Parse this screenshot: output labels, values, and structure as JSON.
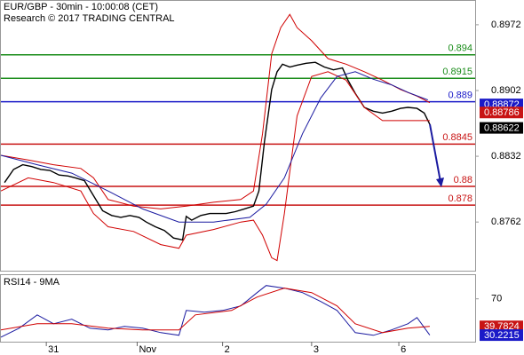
{
  "chart_data": [
    {
      "type": "line",
      "title": "EUR/GBP - 30min - 10:00:08 (CET)",
      "subtitle": "Research © 2017 TRADING CENTRAL",
      "xlim": [
        0,
        261
      ],
      "ylim": [
        0.87102,
        0.89974
      ],
      "yticks": [
        0.8972,
        0.8902,
        0.8832,
        0.8762
      ],
      "series": [
        {
          "color": "#000000",
          "x": [
            2,
            7,
            12,
            17,
            22,
            27,
            32,
            37,
            41,
            46,
            51,
            56,
            61,
            66,
            71,
            76,
            80,
            85,
            90,
            95,
            100,
            102,
            105,
            110,
            115,
            120,
            124,
            129,
            134,
            139,
            142,
            145,
            149,
            152,
            155,
            159,
            163,
            168,
            173,
            178,
            183,
            188,
            191,
            195,
            200,
            205,
            210,
            215,
            220,
            224,
            229,
            233,
            236
          ],
          "values": [
            0.8804,
            0.8818,
            0.8823,
            0.8821,
            0.8818,
            0.8817,
            0.8812,
            0.8811,
            0.8809,
            0.8806,
            0.879,
            0.8774,
            0.8769,
            0.8767,
            0.8769,
            0.8767,
            0.8762,
            0.8757,
            0.8753,
            0.8745,
            0.8743,
            0.8768,
            0.8764,
            0.8769,
            0.8771,
            0.8771,
            0.8771,
            0.8773,
            0.8776,
            0.8779,
            0.8795,
            0.8847,
            0.8903,
            0.8922,
            0.893,
            0.8927,
            0.8929,
            0.8931,
            0.8932,
            0.8927,
            0.8924,
            0.8926,
            0.8913,
            0.8899,
            0.8884,
            0.888,
            0.8878,
            0.888,
            0.8883,
            0.8884,
            0.8883,
            0.8878,
            0.8866
          ]
        },
        {
          "color": "#d00000",
          "x": [
            0,
            15,
            29,
            44,
            51,
            59,
            73,
            88,
            102,
            117,
            132,
            139,
            144,
            149,
            154,
            159,
            163,
            171,
            180,
            190,
            200,
            210,
            220,
            229,
            236
          ],
          "values": [
            0.8833,
            0.8828,
            0.8823,
            0.8819,
            0.8809,
            0.8786,
            0.8779,
            0.8776,
            0.8779,
            0.8783,
            0.8786,
            0.8795,
            0.8856,
            0.8941,
            0.8969,
            0.8983,
            0.8969,
            0.8955,
            0.8936,
            0.893,
            0.8922,
            0.8913,
            0.8903,
            0.8896,
            0.8889
          ]
        },
        {
          "color": "#d00000",
          "x": [
            0,
            15,
            29,
            44,
            51,
            59,
            73,
            88,
            98,
            102,
            117,
            132,
            139,
            144,
            149,
            152,
            156,
            163,
            171,
            180,
            190,
            200,
            210,
            220,
            229,
            236
          ],
          "values": [
            0.8795,
            0.8809,
            0.8804,
            0.8795,
            0.8771,
            0.8757,
            0.8752,
            0.8738,
            0.8734,
            0.8748,
            0.8754,
            0.8762,
            0.8764,
            0.8748,
            0.8724,
            0.8721,
            0.8771,
            0.8875,
            0.8917,
            0.8922,
            0.8913,
            0.8884,
            0.887,
            0.887,
            0.887,
            0.887
          ]
        },
        {
          "color": "#1a1aa0",
          "x": [
            0,
            20,
            39,
            59,
            78,
            98,
            117,
            137,
            146,
            156,
            166,
            176,
            185,
            195,
            205,
            215,
            224,
            235
          ],
          "values": [
            0.8833,
            0.8823,
            0.8814,
            0.8795,
            0.8776,
            0.8762,
            0.8762,
            0.8767,
            0.8781,
            0.8809,
            0.8856,
            0.8894,
            0.8917,
            0.8922,
            0.8914,
            0.8908,
            0.89,
            0.8892
          ]
        }
      ],
      "levels": [
        {
          "value": 0.894,
          "color": "#1a8c1a"
        },
        {
          "value": 0.8915,
          "color": "#1a8c1a"
        },
        {
          "value": 0.889,
          "color": "#1a1ac8"
        },
        {
          "value": 0.8845,
          "color": "#c81414"
        },
        {
          "value": 0.88,
          "color": "#c81414"
        },
        {
          "value": 0.878,
          "color": "#c81414"
        }
      ],
      "price_tags": [
        {
          "value": 0.88872,
          "color": "#1a1ac8"
        },
        {
          "value": 0.88786,
          "color": "#c81414"
        },
        {
          "value": 0.88622,
          "color": "#000000"
        }
      ]
    },
    {
      "type": "line",
      "title": "RSI14 - 9MA",
      "xlim": [
        0,
        261
      ],
      "ylim": [
        23,
        96
      ],
      "yticks": [
        70
      ],
      "xticks": [
        {
          "value": 25,
          "label": "31"
        },
        {
          "value": 75,
          "label": "Nov"
        },
        {
          "value": 122,
          "label": "2"
        },
        {
          "value": 171,
          "label": "3"
        },
        {
          "value": 219,
          "label": "6"
        }
      ],
      "series": [
        {
          "color": "#1a1aa0",
          "x": [
            0,
            10,
            20,
            29,
            39,
            49,
            59,
            68,
            78,
            88,
            98,
            102,
            112,
            122,
            132,
            141,
            146,
            156,
            166,
            176,
            185,
            195,
            205,
            215,
            224,
            229,
            236
          ],
          "values": [
            28.0,
            37.8,
            52.4,
            42.7,
            47.6,
            37.8,
            35.9,
            39.8,
            37.8,
            32.9,
            30.0,
            57.3,
            55.4,
            57.3,
            62.2,
            76.8,
            84.6,
            81.7,
            76.8,
            67.1,
            57.3,
            32.9,
            30.0,
            35.9,
            42.7,
            49.5,
            30.2215
          ]
        },
        {
          "color": "#d00000",
          "x": [
            0,
            20,
            39,
            59,
            78,
            98,
            107,
            127,
            141,
            156,
            171,
            185,
            195,
            210,
            224,
            236
          ],
          "values": [
            35.9,
            42.7,
            42.7,
            37.8,
            35.9,
            35.9,
            52.4,
            57.3,
            72.0,
            81.7,
            76.8,
            62.2,
            42.7,
            32.9,
            37.8,
            39.7824
          ]
        }
      ],
      "price_tags": [
        {
          "value": 39.7824,
          "color": "#c81414"
        },
        {
          "value": 30.2215,
          "color": "#1a1ac8"
        }
      ]
    }
  ]
}
